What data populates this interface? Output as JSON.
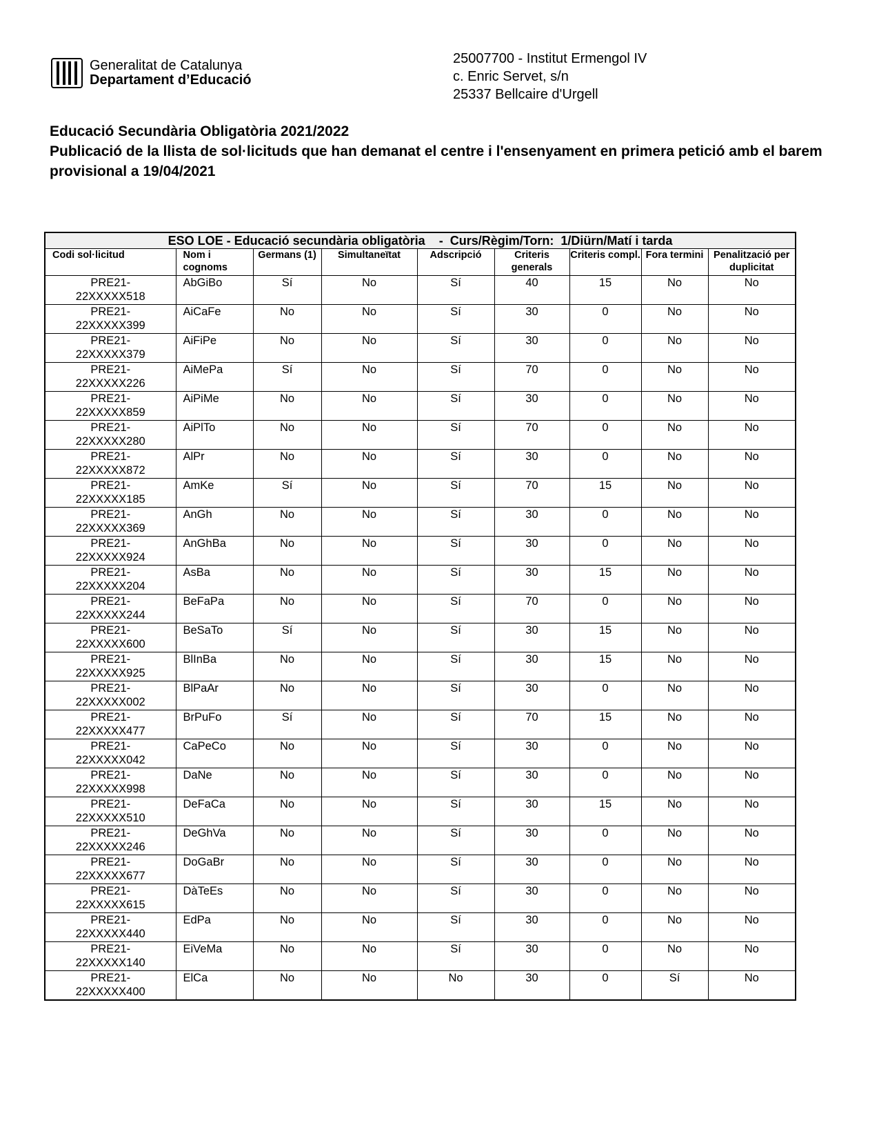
{
  "logo": {
    "line1": "Generalitat de Catalunya",
    "line2": "Departament d’Educació"
  },
  "address": [
    "25007700 - Institut Ermengol IV",
    "c. Enric Servet, s/n",
    "25337 Bellcaire d'Urgell"
  ],
  "title": [
    "Educació Secundària Obligatòria 2021/2022",
    "Publicació de la llista de sol·licituds que han demanat el centre i l'ensenyament en primera petició amb el barem provisional a 19/04/2021"
  ],
  "table": {
    "caption": "ESO LOE - Educació secundària obligatòria    -  Curs/Règim/Torn:  1/Diürn/Matí i tarda",
    "headers": [
      "Codi sol·licitud",
      "Nom i cognoms",
      "Germans (1)",
      "Simultaneïtat",
      "Adscripció",
      "Criteris generals",
      "Criteris compl.",
      "Fora termini",
      "Penalització per duplicitat"
    ],
    "rows": [
      [
        "PRE21-22XXXXX518",
        "AbGiBo",
        "Sí",
        "No",
        "Sí",
        "40",
        "15",
        "No",
        "No"
      ],
      [
        "PRE21-22XXXXX399",
        "AiCaFe",
        "No",
        "No",
        "Sí",
        "30",
        "0",
        "No",
        "No"
      ],
      [
        "PRE21-22XXXXX379",
        "AiFiPe",
        "No",
        "No",
        "Sí",
        "30",
        "0",
        "No",
        "No"
      ],
      [
        "PRE21-22XXXXX226",
        "AiMePa",
        "Sí",
        "No",
        "Sí",
        "70",
        "0",
        "No",
        "No"
      ],
      [
        "PRE21-22XXXXX859",
        "AiPiMe",
        "No",
        "No",
        "Sí",
        "30",
        "0",
        "No",
        "No"
      ],
      [
        "PRE21-22XXXXX280",
        "AiPlTo",
        "No",
        "No",
        "Sí",
        "70",
        "0",
        "No",
        "No"
      ],
      [
        "PRE21-22XXXXX872",
        "AlPr",
        "No",
        "No",
        "Sí",
        "30",
        "0",
        "No",
        "No"
      ],
      [
        "PRE21-22XXXXX185",
        "AmKe",
        "Sí",
        "No",
        "Sí",
        "70",
        "15",
        "No",
        "No"
      ],
      [
        "PRE21-22XXXXX369",
        "AnGh",
        "No",
        "No",
        "Sí",
        "30",
        "0",
        "No",
        "No"
      ],
      [
        "PRE21-22XXXXX924",
        "AnGhBa",
        "No",
        "No",
        "Sí",
        "30",
        "0",
        "No",
        "No"
      ],
      [
        "PRE21-22XXXXX204",
        "AsBa",
        "No",
        "No",
        "Sí",
        "30",
        "15",
        "No",
        "No"
      ],
      [
        "PRE21-22XXXXX244",
        "BeFaPa",
        "No",
        "No",
        "Sí",
        "70",
        "0",
        "No",
        "No"
      ],
      [
        "PRE21-22XXXXX600",
        "BeSaTo",
        "Sí",
        "No",
        "Sí",
        "30",
        "15",
        "No",
        "No"
      ],
      [
        "PRE21-22XXXXX925",
        "BlInBa",
        "No",
        "No",
        "Sí",
        "30",
        "15",
        "No",
        "No"
      ],
      [
        "PRE21-22XXXXX002",
        "BlPaAr",
        "No",
        "No",
        "Sí",
        "30",
        "0",
        "No",
        "No"
      ],
      [
        "PRE21-22XXXXX477",
        "BrPuFo",
        "Sí",
        "No",
        "Sí",
        "70",
        "15",
        "No",
        "No"
      ],
      [
        "PRE21-22XXXXX042",
        "CaPeCo",
        "No",
        "No",
        "Sí",
        "30",
        "0",
        "No",
        "No"
      ],
      [
        "PRE21-22XXXXX998",
        "DaNe",
        "No",
        "No",
        "Sí",
        "30",
        "0",
        "No",
        "No"
      ],
      [
        "PRE21-22XXXXX510",
        "DeFaCa",
        "No",
        "No",
        "Sí",
        "30",
        "15",
        "No",
        "No"
      ],
      [
        "PRE21-22XXXXX246",
        "DeGhVa",
        "No",
        "No",
        "Sí",
        "30",
        "0",
        "No",
        "No"
      ],
      [
        "PRE21-22XXXXX677",
        "DoGaBr",
        "No",
        "No",
        "Sí",
        "30",
        "0",
        "No",
        "No"
      ],
      [
        "PRE21-22XXXXX615",
        "DàTeEs",
        "No",
        "No",
        "Sí",
        "30",
        "0",
        "No",
        "No"
      ],
      [
        "PRE21-22XXXXX440",
        "EdPa",
        "No",
        "No",
        "Sí",
        "30",
        "0",
        "No",
        "No"
      ],
      [
        "PRE21-22XXXXX140",
        "EiVeMa",
        "No",
        "No",
        "Sí",
        "30",
        "0",
        "No",
        "No"
      ],
      [
        "PRE21-22XXXXX400",
        "ElCa",
        "No",
        "No",
        "No",
        "30",
        "0",
        "Sí",
        "No"
      ]
    ]
  }
}
